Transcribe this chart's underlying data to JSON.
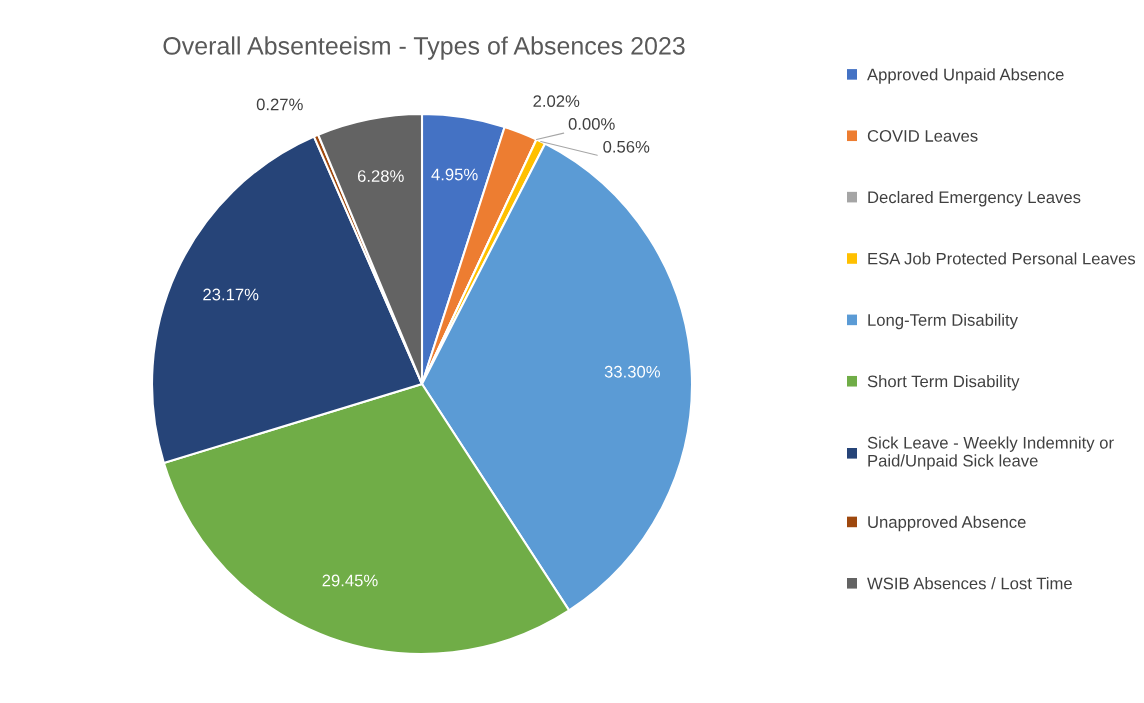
{
  "chart_data": {
    "type": "pie",
    "title": "Overall Absenteeism - Types of Absences 2023",
    "categories": [
      "Approved Unpaid Absence",
      "COVID Leaves",
      "Declared Emergency Leaves",
      "ESA Job Protected Personal Leaves",
      "Long-Term Disability",
      "Short Term Disability",
      "Sick Leave - Weekly Indemnity or\nPaid/Unpaid Sick leave",
      "Unapproved Absence",
      "WSIB Absences / Lost Time"
    ],
    "values": [
      4.95,
      2.02,
      0.0,
      0.56,
      33.3,
      29.45,
      23.17,
      0.27,
      6.28
    ],
    "colors": [
      "#4472c4",
      "#ed7d31",
      "#a5a5a5",
      "#ffc000",
      "#5b9bd5",
      "#70ad47",
      "#264478",
      "#9e480e",
      "#636363"
    ],
    "value_labels": [
      "4.95%",
      "2.02%",
      "0.00%",
      "0.56%",
      "33.30%",
      "29.45%",
      "23.17%",
      "0.27%",
      "6.28%"
    ],
    "legend": "right"
  }
}
